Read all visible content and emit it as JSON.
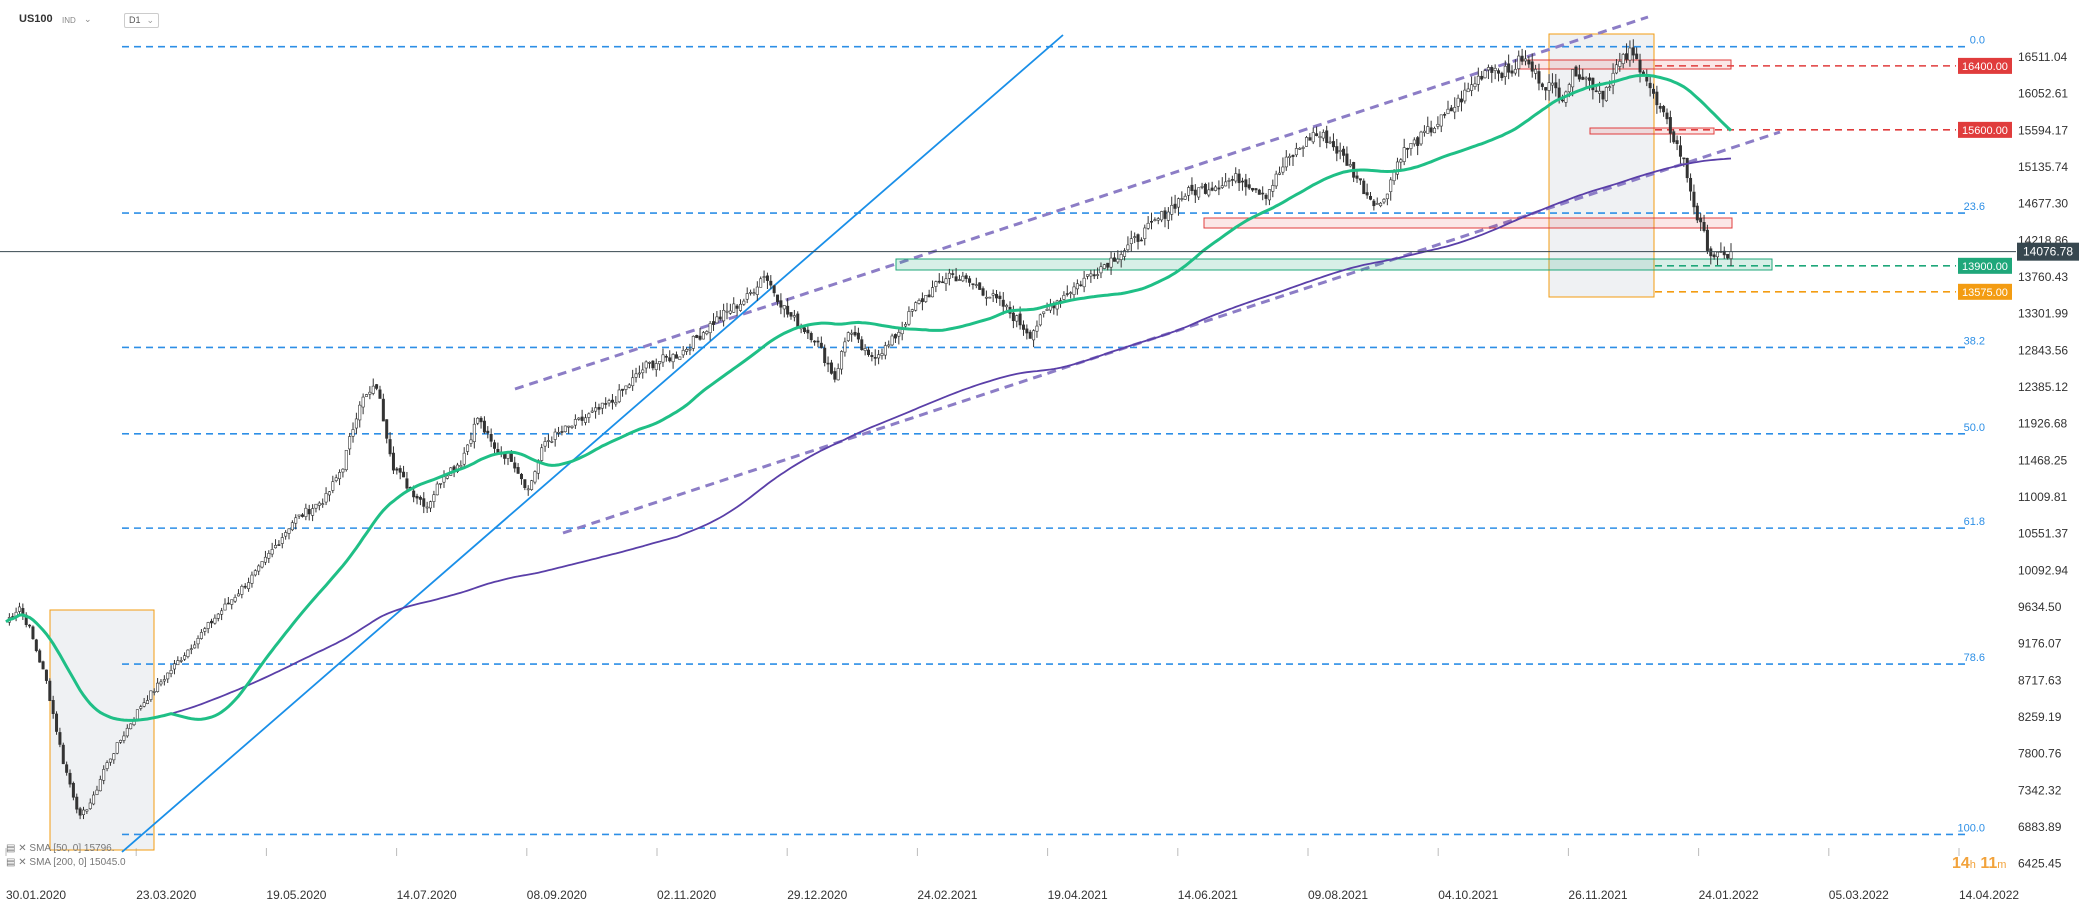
{
  "header": {
    "symbol": "US100",
    "market": "IND",
    "caret": "⌄",
    "timeframe": "D1",
    "timeframe_caret": "⌄"
  },
  "chart_data": {
    "type": "candlestick",
    "symbol": "US100",
    "timeframe": "D1",
    "ylim": [
      6425.45,
      16900
    ],
    "price_scale_labels": [
      "16511.04",
      "16052.61",
      "15594.17",
      "15135.74",
      "14677.30",
      "14218.86",
      "13760.43",
      "13301.99",
      "12843.56",
      "12385.12",
      "11926.68",
      "11468.25",
      "11009.81",
      "10551.37",
      "10092.94",
      "9634.50",
      "9176.07",
      "8717.63",
      "8259.19",
      "7800.76",
      "7342.32",
      "6883.89",
      "6425.45"
    ],
    "date_labels": [
      "30.01.2020",
      "23.03.2020",
      "19.05.2020",
      "14.07.2020",
      "08.09.2020",
      "02.11.2020",
      "29.12.2020",
      "24.02.2021",
      "19.04.2021",
      "14.06.2021",
      "09.08.2021",
      "04.10.2021",
      "26.11.2021",
      "24.01.2022",
      "05.03.2022",
      "14.04.2022"
    ],
    "current_price": "14076.78",
    "fibonacci": [
      {
        "label": "0.0",
        "price": 16640
      },
      {
        "label": "23.6",
        "price": 14560
      },
      {
        "label": "38.2",
        "price": 12880
      },
      {
        "label": "50.0",
        "price": 11800
      },
      {
        "label": "61.8",
        "price": 10620
      },
      {
        "label": "78.6",
        "price": 8920
      },
      {
        "label": "100.0",
        "price": 6790
      }
    ],
    "levels": [
      {
        "label": "16400.00",
        "price": 16400,
        "color": "#e03c3c"
      },
      {
        "label": "15600.00",
        "price": 15600,
        "color": "#e03c3c"
      },
      {
        "label": "13900.00",
        "price": 13900,
        "color": "#1fa77a"
      },
      {
        "label": "13575.00",
        "price": 13575,
        "color": "#f39c12"
      }
    ],
    "indicators": [
      {
        "label": "SMA [50, 0]",
        "value": "15796.",
        "color": "#1fbf86"
      },
      {
        "label": "SMA [200, 0]",
        "value": "15045.0",
        "color": "#5a3fa8"
      }
    ],
    "colors": {
      "fib": "#2d8fe6",
      "up": "#ffffff",
      "down": "#333333",
      "channel": "#8c7dc6",
      "trend": "#1a8fe8"
    },
    "candle_close_path": [
      [
        0,
        9450
      ],
      [
        4,
        9640
      ],
      [
        7,
        9360
      ],
      [
        12,
        8700
      ],
      [
        17,
        7700
      ],
      [
        22,
        7000
      ],
      [
        26,
        7250
      ],
      [
        29,
        7600
      ],
      [
        33,
        7900
      ],
      [
        40,
        8400
      ],
      [
        50,
        8900
      ],
      [
        62,
        9500
      ],
      [
        75,
        10100
      ],
      [
        85,
        10700
      ],
      [
        95,
        11000
      ],
      [
        100,
        11400
      ],
      [
        105,
        12200
      ],
      [
        108,
        12300
      ],
      [
        110,
        12400
      ],
      [
        115,
        11400
      ],
      [
        120,
        11100
      ],
      [
        125,
        10900
      ],
      [
        130,
        11300
      ],
      [
        135,
        11450
      ],
      [
        140,
        12000
      ],
      [
        145,
        11600
      ],
      [
        150,
        11500
      ],
      [
        155,
        11100
      ],
      [
        160,
        11700
      ],
      [
        170,
        11950
      ],
      [
        180,
        12200
      ],
      [
        190,
        12650
      ],
      [
        200,
        12800
      ],
      [
        210,
        13200
      ],
      [
        220,
        13500
      ],
      [
        225,
        13800
      ],
      [
        232,
        13300
      ],
      [
        240,
        13000
      ],
      [
        246,
        12500
      ],
      [
        250,
        13100
      ],
      [
        256,
        12750
      ],
      [
        262,
        12900
      ],
      [
        270,
        13400
      ],
      [
        280,
        13800
      ],
      [
        288,
        13650
      ],
      [
        296,
        13400
      ],
      [
        304,
        13050
      ],
      [
        310,
        13400
      ],
      [
        316,
        13600
      ],
      [
        322,
        13800
      ],
      [
        332,
        14100
      ],
      [
        340,
        14400
      ],
      [
        350,
        14800
      ],
      [
        358,
        14900
      ],
      [
        366,
        15000
      ],
      [
        374,
        14800
      ],
      [
        380,
        15200
      ],
      [
        388,
        15550
      ],
      [
        392,
        15500
      ],
      [
        398,
        15200
      ],
      [
        404,
        14800
      ],
      [
        408,
        14650
      ],
      [
        414,
        15300
      ],
      [
        420,
        15500
      ],
      [
        428,
        15800
      ],
      [
        434,
        16100
      ],
      [
        440,
        16400
      ],
      [
        446,
        16300
      ],
      [
        450,
        16500
      ],
      [
        456,
        16200
      ],
      [
        462,
        16050
      ],
      [
        466,
        16350
      ],
      [
        470,
        16200
      ],
      [
        474,
        16050
      ],
      [
        478,
        16380
      ],
      [
        482,
        16560
      ],
      [
        486,
        16350
      ],
      [
        490,
        15900
      ],
      [
        494,
        15600
      ],
      [
        498,
        15200
      ],
      [
        502,
        14500
      ],
      [
        506,
        14050
      ],
      [
        510,
        14000
      ],
      [
        512,
        14076.78
      ]
    ]
  }
}
